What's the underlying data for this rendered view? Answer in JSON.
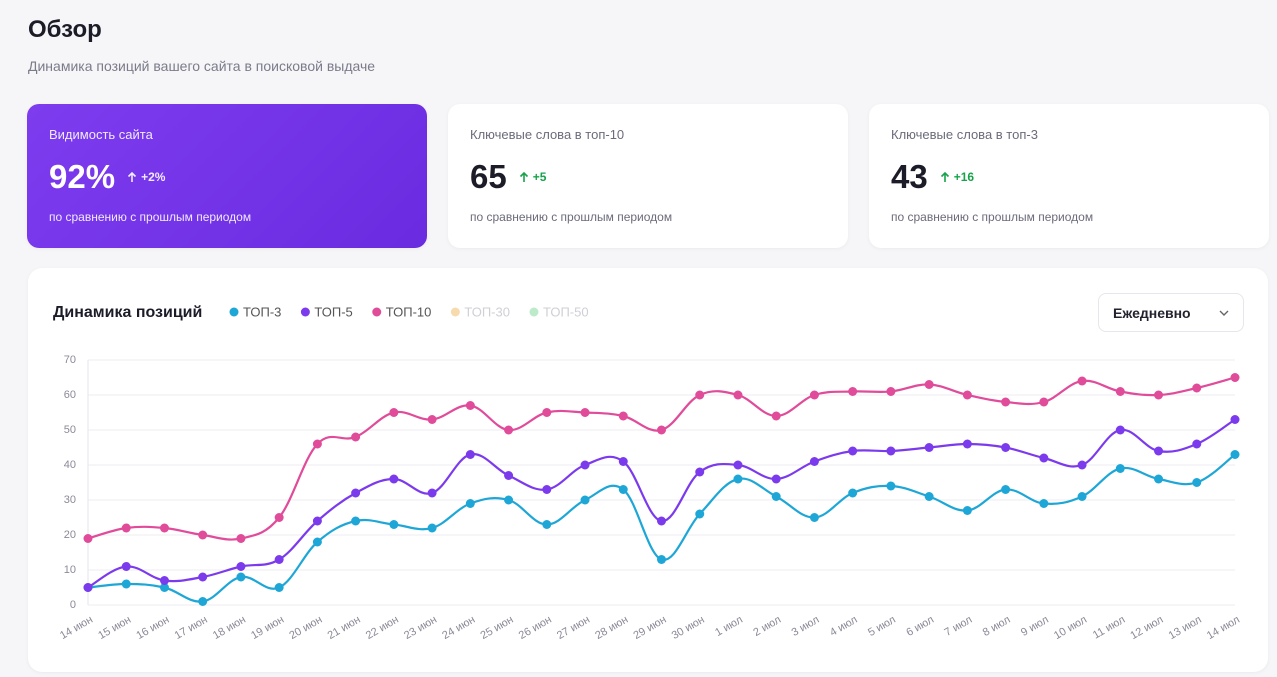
{
  "header": {
    "title": "Обзор",
    "subtitle": "Динамика позиций вашего сайта в поисковой выдаче"
  },
  "cards": [
    {
      "label": "Видимость сайта",
      "value": "92%",
      "change": "+2%",
      "note": "по сравнению с прошлым периодом"
    },
    {
      "label": "Ключевые слова в топ-10",
      "value": "65",
      "change": "+5",
      "note": "по сравнению с прошлым периодом"
    },
    {
      "label": "Ключевые слова в топ-3",
      "value": "43",
      "change": "+16",
      "note": "по сравнению с прошлым периодом"
    }
  ],
  "period_select": "Ежедневно",
  "chart_data": {
    "type": "line",
    "title": "Динамика позиций",
    "x": [
      "14 июн",
      "15 июн",
      "16 июн",
      "17 июн",
      "18 июн",
      "19 июн",
      "20 июн",
      "21 июн",
      "22 июн",
      "23 июн",
      "24 июн",
      "25 июн",
      "26 июн",
      "27 июн",
      "28 июн",
      "29 июн",
      "30 июн",
      "1 июл",
      "2 июл",
      "3 июл",
      "4 июл",
      "5 июл",
      "6 июл",
      "7 июл",
      "8 июл",
      "9 июл",
      "10 июл",
      "11 июл",
      "12 июл",
      "13 июл",
      "14 июл"
    ],
    "series": [
      {
        "name": "ТОП-3",
        "color": "#1ea7d6",
        "values": [
          5,
          6,
          5,
          1,
          8,
          5,
          18,
          24,
          23,
          22,
          29,
          30,
          23,
          30,
          33,
          13,
          26,
          36,
          31,
          25,
          32,
          34,
          31,
          27,
          33,
          29,
          31,
          39,
          36,
          35,
          43
        ]
      },
      {
        "name": "ТОП-5",
        "color": "#7c3aed",
        "values": [
          5,
          11,
          7,
          8,
          11,
          13,
          24,
          32,
          36,
          32,
          43,
          37,
          33,
          40,
          41,
          24,
          38,
          40,
          36,
          41,
          44,
          44,
          45,
          46,
          45,
          42,
          40,
          50,
          44,
          46,
          53
        ]
      },
      {
        "name": "ТОП-10",
        "color": "#e04b9a",
        "values": [
          19,
          22,
          22,
          20,
          19,
          25,
          46,
          48,
          55,
          53,
          57,
          50,
          55,
          55,
          54,
          50,
          60,
          60,
          54,
          60,
          61,
          61,
          63,
          60,
          58,
          58,
          64,
          61,
          60,
          62,
          65
        ]
      }
    ],
    "inactive_series": [
      {
        "name": "ТОП-30",
        "color": "#f6d7a6"
      },
      {
        "name": "ТОП-50",
        "color": "#b5e8c4"
      }
    ],
    "ylim": [
      0,
      70
    ],
    "yticks": [
      0,
      10,
      20,
      30,
      40,
      50,
      60,
      70
    ],
    "grid": true
  }
}
